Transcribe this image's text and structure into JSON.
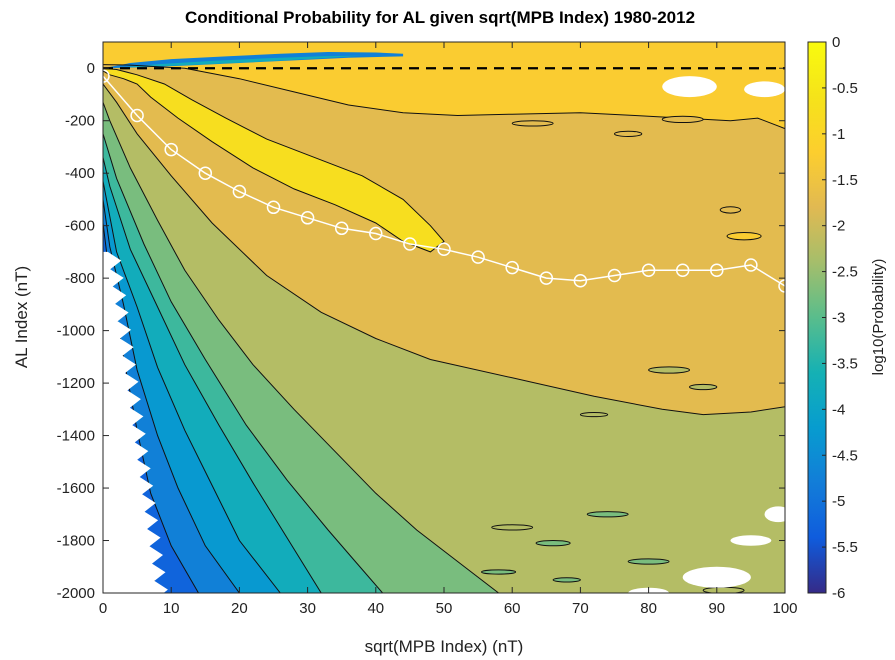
{
  "chart_data": {
    "type": "contour",
    "title": "Conditional Probability for AL given sqrt(MPB Index) 1980-2012",
    "xlabel": "sqrt(MPB Index) (nT)",
    "ylabel": "AL Index (nT)",
    "colorbar_label": "log10(Probability)",
    "xlim": [
      0,
      100
    ],
    "ylim": [
      -2000,
      100
    ],
    "xticks": [
      0,
      10,
      20,
      30,
      40,
      50,
      60,
      70,
      80,
      90,
      100
    ],
    "yticks": [
      0,
      -200,
      -400,
      -600,
      -800,
      -1000,
      -1200,
      -1400,
      -1600,
      -1800,
      -2000
    ],
    "colorbar_ticks": [
      0,
      -0.5,
      -1,
      -1.5,
      -2,
      -2.5,
      -3,
      -3.5,
      -4,
      -4.5,
      -5,
      -5.5,
      -6
    ],
    "colorbar_range": [
      -6,
      0
    ],
    "colormap": "parula",
    "reference_line": {
      "y": 0,
      "style": "dashed",
      "color": "#000000"
    },
    "median_series": {
      "x": [
        0,
        5,
        10,
        15,
        20,
        25,
        30,
        35,
        40,
        45,
        50,
        55,
        60,
        65,
        70,
        75,
        80,
        85,
        90,
        95,
        100
      ],
      "y": [
        -30,
        -180,
        -310,
        -400,
        -470,
        -530,
        -570,
        -610,
        -630,
        -670,
        -690,
        -720,
        -760,
        -800,
        -810,
        -790,
        -770,
        -770,
        -770,
        -750,
        -830
      ],
      "color": "#ffffff",
      "marker": "circle"
    }
  }
}
